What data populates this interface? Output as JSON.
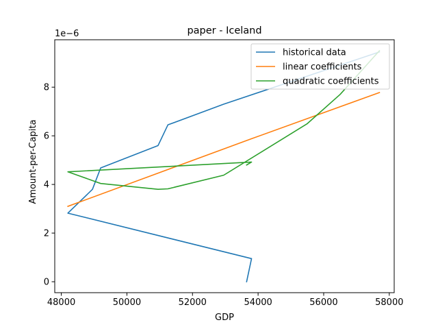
{
  "chart_data": {
    "type": "line",
    "title": "paper - Iceland",
    "xlabel": "GDP",
    "ylabel": "Amount-per-Capita",
    "y_offset_label": "1e−6",
    "xlim": [
      47800,
      58150
    ],
    "ylim": [
      -0.45,
      9.95
    ],
    "x_ticks": [
      48000,
      50000,
      52000,
      54000,
      56000,
      58000
    ],
    "x_tick_labels": [
      "48000",
      "50000",
      "52000",
      "54000",
      "56000",
      "58000"
    ],
    "y_ticks": [
      0,
      2,
      4,
      6,
      8
    ],
    "y_tick_labels": [
      "0",
      "2",
      "4",
      "6",
      "8"
    ],
    "grid": false,
    "legend_position": "top-right",
    "series": [
      {
        "name": "historical data",
        "color": "#1f77b4",
        "points": [
          [
            53650,
            0.0
          ],
          [
            53800,
            0.95
          ],
          [
            48200,
            2.82
          ],
          [
            48950,
            3.8
          ],
          [
            49200,
            4.68
          ],
          [
            50950,
            5.6
          ],
          [
            51250,
            6.45
          ],
          [
            52950,
            7.3
          ],
          [
            57700,
            9.45
          ]
        ]
      },
      {
        "name": "linear coefficients",
        "color": "#ff7f0e",
        "points": [
          [
            48200,
            3.1
          ],
          [
            53800,
            5.88
          ],
          [
            57700,
            7.78
          ]
        ]
      },
      {
        "name": "quadratic coefficients",
        "color": "#2ca02c",
        "points": [
          [
            53650,
            4.8
          ],
          [
            53800,
            4.92
          ],
          [
            48200,
            4.52
          ],
          [
            49200,
            4.04
          ],
          [
            50950,
            3.8
          ],
          [
            51250,
            3.82
          ],
          [
            52950,
            4.38
          ],
          [
            55500,
            6.5
          ],
          [
            56500,
            7.7
          ],
          [
            57700,
            9.5
          ]
        ]
      }
    ]
  }
}
